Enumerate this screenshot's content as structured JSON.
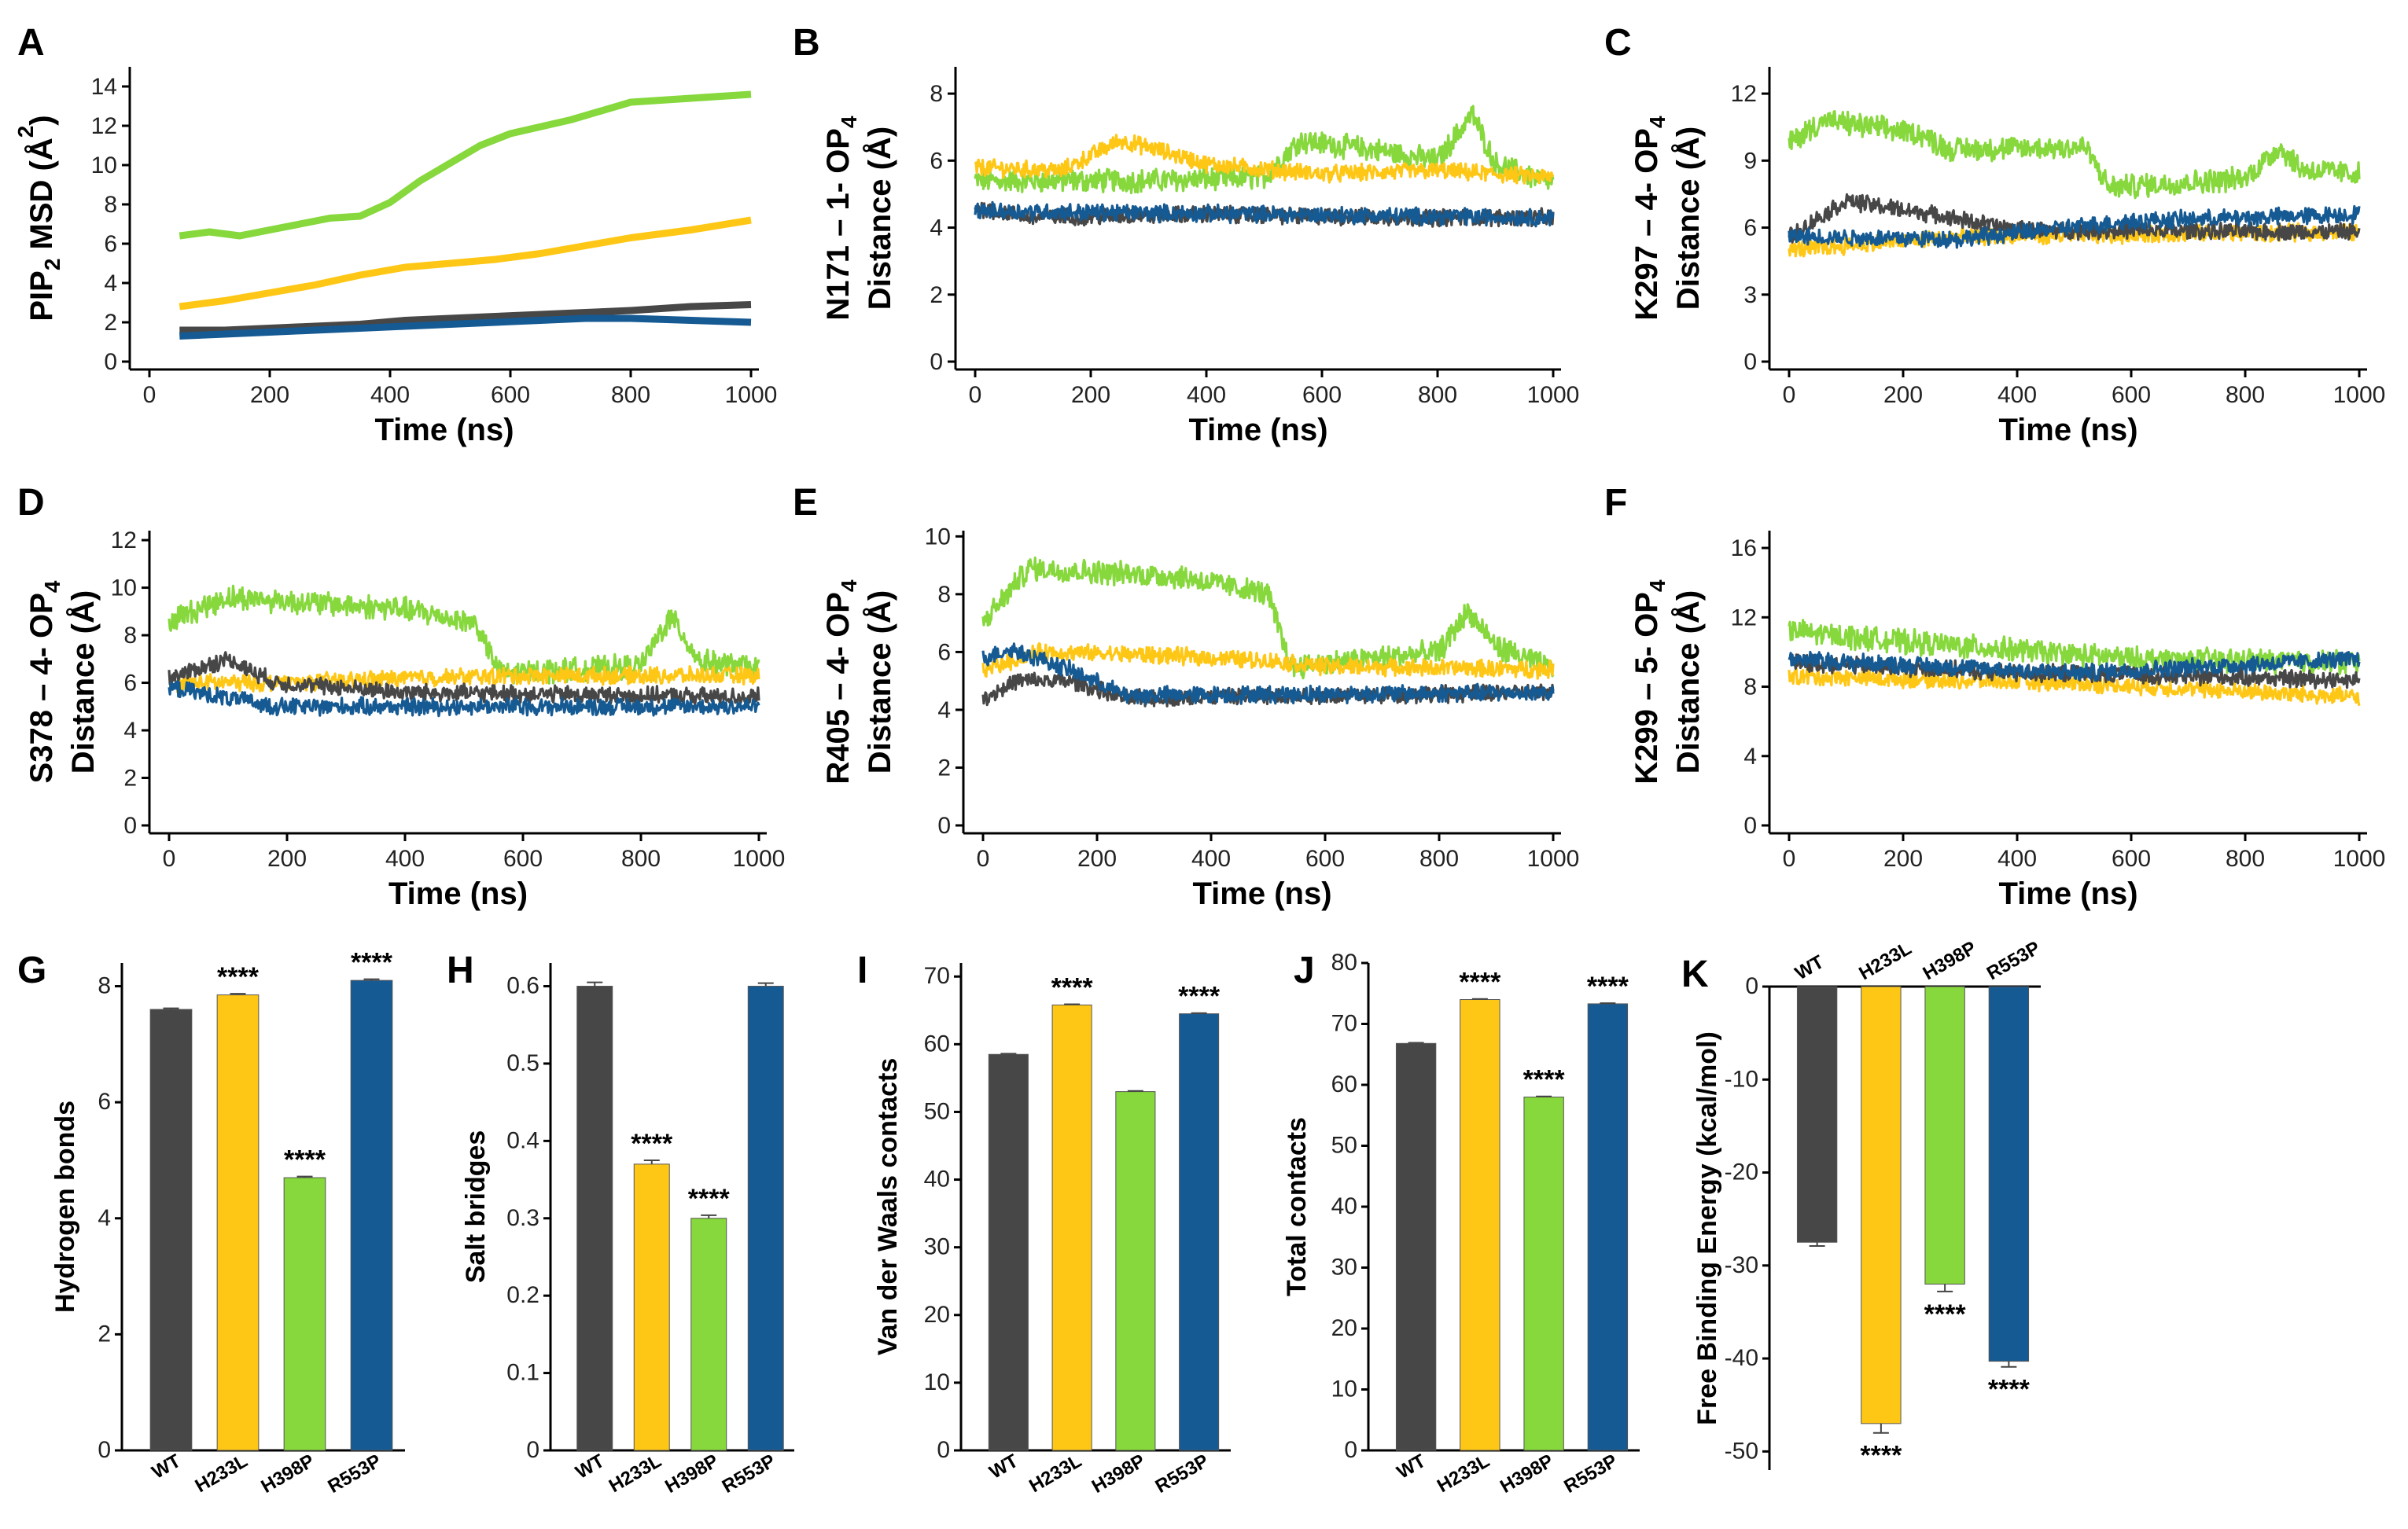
{
  "colors": {
    "WT": "#474747",
    "H233L": "#FFC715",
    "H398P": "#86D83C",
    "R553P": "#165A93"
  },
  "xlabel": "Time (ns)",
  "xticks": [
    0,
    200,
    400,
    600,
    800,
    1000
  ],
  "line_panels": [
    {
      "label": "A",
      "ylabel_main": "PIP",
      "ylabel_sub": "2",
      "ylabel_rest": " MSD (Å",
      "ylabel_sup": "2",
      "ylabel_end": ")",
      "ylabel2": "",
      "ylim": [
        0,
        15
      ],
      "yticks": [
        0,
        2,
        4,
        6,
        8,
        10,
        12,
        14
      ],
      "noisy": false,
      "series": {
        "H398P": [
          6.4,
          6.6,
          6.4,
          6.7,
          7.0,
          7.3,
          7.4,
          8.1,
          9.2,
          10.1,
          11.0,
          11.6,
          12.3,
          13.2,
          13.6
        ],
        "H233L": [
          2.8,
          3.1,
          3.5,
          3.9,
          4.4,
          4.8,
          5.0,
          5.2,
          5.5,
          5.9,
          6.3,
          6.7,
          7.2
        ],
        "WT": [
          1.6,
          1.6,
          1.7,
          1.8,
          1.9,
          2.1,
          2.2,
          2.3,
          2.4,
          2.5,
          2.6,
          2.8,
          2.9
        ],
        "R553P": [
          1.3,
          1.4,
          1.5,
          1.6,
          1.7,
          1.8,
          1.9,
          2.0,
          2.1,
          2.2,
          2.2,
          2.1,
          2.0
        ]
      }
    },
    {
      "label": "B",
      "ylabel_main": "N171 – 1- OP",
      "ylabel_sub": "4",
      "ylabel_rest": "",
      "ylabel_sup": "",
      "ylabel_end": "",
      "ylabel2": "Distance (Å)",
      "ylim": [
        0,
        8.8
      ],
      "yticks": [
        0,
        2,
        4,
        6,
        8
      ],
      "noisy": true,
      "series": {
        "WT": [
          [
            0,
            4.6
          ],
          [
            100,
            4.3
          ],
          [
            400,
            4.4
          ],
          [
            700,
            4.3
          ],
          [
            1000,
            4.3
          ]
        ],
        "H233L": [
          [
            0,
            5.8
          ],
          [
            150,
            5.7
          ],
          [
            250,
            6.6
          ],
          [
            300,
            6.4
          ],
          [
            400,
            5.9
          ],
          [
            600,
            5.6
          ],
          [
            800,
            5.7
          ],
          [
            1000,
            5.5
          ]
        ],
        "H398P": [
          [
            0,
            5.4
          ],
          [
            300,
            5.4
          ],
          [
            500,
            5.5
          ],
          [
            560,
            6.6
          ],
          [
            700,
            6.3
          ],
          [
            800,
            6.0
          ],
          [
            860,
            7.4
          ],
          [
            900,
            5.9
          ],
          [
            1000,
            5.3
          ]
        ],
        "R553P": [
          [
            0,
            4.5
          ],
          [
            500,
            4.4
          ],
          [
            1000,
            4.3
          ]
        ]
      }
    },
    {
      "label": "C",
      "ylabel_main": "K297 – 4- OP",
      "ylabel_sub": "4",
      "ylabel_rest": "",
      "ylabel_sup": "",
      "ylabel_end": "",
      "ylabel2": "Distance (Å)",
      "ylim": [
        0,
        13.2
      ],
      "yticks": [
        0,
        3,
        6,
        9,
        12
      ],
      "noisy": true,
      "series": {
        "WT": [
          [
            0,
            5.6
          ],
          [
            100,
            7.2
          ],
          [
            250,
            6.6
          ],
          [
            400,
            5.9
          ],
          [
            1000,
            5.8
          ]
        ],
        "H233L": [
          [
            0,
            5.0
          ],
          [
            300,
            5.6
          ],
          [
            1000,
            5.8
          ]
        ],
        "H398P": [
          [
            0,
            9.8
          ],
          [
            60,
            10.8
          ],
          [
            230,
            10.2
          ],
          [
            280,
            9.5
          ],
          [
            520,
            9.6
          ],
          [
            560,
            7.8
          ],
          [
            800,
            8.2
          ],
          [
            860,
            9.6
          ],
          [
            900,
            8.6
          ],
          [
            1000,
            8.4
          ]
        ],
        "R553P": [
          [
            0,
            5.6
          ],
          [
            300,
            5.5
          ],
          [
            600,
            6.3
          ],
          [
            1000,
            6.6
          ]
        ]
      }
    },
    {
      "label": "D",
      "ylabel_main": "S378 – 4- OP",
      "ylabel_sub": "4",
      "ylabel_rest": "",
      "ylabel_sup": "",
      "ylabel_end": "",
      "ylabel2": "Distance (Å)",
      "ylim": [
        0,
        12.4
      ],
      "yticks": [
        0,
        2,
        4,
        6,
        8,
        10,
        12
      ],
      "noisy": true,
      "series": {
        "WT": [
          [
            0,
            6.2
          ],
          [
            100,
            7.0
          ],
          [
            180,
            6.0
          ],
          [
            400,
            5.6
          ],
          [
            1000,
            5.4
          ]
        ],
        "H233L": [
          [
            0,
            6.0
          ],
          [
            200,
            6.0
          ],
          [
            400,
            6.2
          ],
          [
            600,
            6.3
          ],
          [
            1000,
            6.3
          ]
        ],
        "H398P": [
          [
            0,
            8.6
          ],
          [
            100,
            9.6
          ],
          [
            400,
            9.1
          ],
          [
            520,
            8.5
          ],
          [
            560,
            6.4
          ],
          [
            800,
            6.7
          ],
          [
            850,
            8.8
          ],
          [
            900,
            6.9
          ],
          [
            1000,
            6.6
          ]
        ],
        "R553P": [
          [
            0,
            5.8
          ],
          [
            180,
            5.0
          ],
          [
            1000,
            5.0
          ]
        ]
      }
    },
    {
      "label": "E",
      "ylabel_main": "R405 – 4- OP",
      "ylabel_sub": "4",
      "ylabel_rest": "",
      "ylabel_sup": "",
      "ylabel_end": "",
      "ylabel2": "Distance (Å)",
      "ylim": [
        0,
        10.2
      ],
      "yticks": [
        0,
        2,
        4,
        6,
        8,
        10
      ],
      "noisy": true,
      "series": {
        "WT": [
          [
            0,
            4.4
          ],
          [
            60,
            5.0
          ],
          [
            150,
            5.0
          ],
          [
            250,
            4.4
          ],
          [
            1000,
            4.6
          ]
        ],
        "H233L": [
          [
            0,
            5.4
          ],
          [
            100,
            6.0
          ],
          [
            300,
            5.9
          ],
          [
            500,
            5.7
          ],
          [
            600,
            5.5
          ],
          [
            1000,
            5.4
          ]
        ],
        "H398P": [
          [
            0,
            7.0
          ],
          [
            80,
            8.9
          ],
          [
            350,
            8.6
          ],
          [
            500,
            8.0
          ],
          [
            540,
            5.5
          ],
          [
            800,
            6.0
          ],
          [
            850,
            7.4
          ],
          [
            900,
            6.2
          ],
          [
            1000,
            5.4
          ]
        ],
        "R553P": [
          [
            0,
            5.8
          ],
          [
            50,
            6.1
          ],
          [
            150,
            5.4
          ],
          [
            250,
            4.5
          ],
          [
            1000,
            4.6
          ]
        ]
      }
    },
    {
      "label": "F",
      "ylabel_main": "K299 – 5- OP",
      "ylabel_sub": "4",
      "ylabel_rest": "",
      "ylabel_sup": "",
      "ylabel_end": "",
      "ylabel2": "Distance (Å)",
      "ylim": [
        0,
        17
      ],
      "yticks": [
        0,
        4,
        8,
        12,
        16
      ],
      "noisy": true,
      "series": {
        "WT": [
          [
            0,
            9.4
          ],
          [
            400,
            8.8
          ],
          [
            1000,
            8.4
          ]
        ],
        "H233L": [
          [
            0,
            8.6
          ],
          [
            500,
            8.2
          ],
          [
            1000,
            7.4
          ]
        ],
        "H398P": [
          [
            0,
            11.2
          ],
          [
            200,
            10.6
          ],
          [
            600,
            9.6
          ],
          [
            1000,
            9.4
          ]
        ],
        "R553P": [
          [
            0,
            9.6
          ],
          [
            500,
            8.8
          ],
          [
            1000,
            9.6
          ]
        ]
      }
    }
  ],
  "bar_categories": [
    "WT",
    "H233L",
    "H398P",
    "R553P"
  ],
  "bar_panels": [
    {
      "label": "G",
      "ylabel": "Hydrogen bonds",
      "ylim": [
        0,
        8.4
      ],
      "yticks": [
        "0",
        "2",
        "4",
        "6",
        "8"
      ],
      "values": [
        7.6,
        7.85,
        4.7,
        8.1
      ],
      "errors": [
        0.02,
        0.02,
        0.02,
        0.02
      ],
      "stars": [
        "",
        "****",
        "****",
        "****"
      ],
      "negative": false
    },
    {
      "label": "H",
      "ylabel": "Salt bridges",
      "ylim": [
        0,
        0.63
      ],
      "yticks": [
        "0",
        "0.1",
        "0.2",
        "0.3",
        "0.4",
        "0.5",
        "0.6"
      ],
      "values": [
        0.6,
        0.37,
        0.3,
        0.6
      ],
      "errors": [
        0.005,
        0.005,
        0.004,
        0.004
      ],
      "stars": [
        "",
        "****",
        "****",
        ""
      ],
      "negative": false
    },
    {
      "label": "I",
      "ylabel": "Van der Waals contacts",
      "ylim": [
        0,
        72
      ],
      "yticks": [
        "0",
        "10",
        "20",
        "30",
        "40",
        "50",
        "60",
        "70"
      ],
      "values": [
        58.5,
        65.8,
        53.0,
        64.5
      ],
      "errors": [
        0.1,
        0.1,
        0.1,
        0.1
      ],
      "stars": [
        "",
        "****",
        "",
        "****"
      ],
      "negative": false
    },
    {
      "label": "J",
      "ylabel": "Total contacts",
      "ylim": [
        0,
        80
      ],
      "yticks": [
        "0",
        "10",
        "20",
        "30",
        "40",
        "50",
        "60",
        "70",
        "80"
      ],
      "values": [
        66.8,
        74.0,
        58.0,
        73.3
      ],
      "errors": [
        0.1,
        0.1,
        0.1,
        0.1
      ],
      "stars": [
        "",
        "****",
        "****",
        "****"
      ],
      "negative": false
    },
    {
      "label": "K",
      "ylabel": "Free Binding Energy (kcal/mol)",
      "ylim": [
        -52,
        0
      ],
      "yticks": [
        "0",
        "-10",
        "-20",
        "-30",
        "-40",
        "-50"
      ],
      "values": [
        -27.5,
        -47.0,
        -32.0,
        -40.3
      ],
      "errors": [
        0.4,
        1.0,
        0.8,
        0.6
      ],
      "stars": [
        "",
        "****",
        "****",
        "****"
      ],
      "negative": true
    }
  ],
  "chart_data": [
    {
      "type": "line",
      "title": "A",
      "xlabel": "Time (ns)",
      "ylabel": "PIP2 MSD (Å2)",
      "xlim": [
        0,
        1000
      ],
      "ylim": [
        0,
        15
      ],
      "series": [
        {
          "name": "H398P",
          "x": [
            50,
            100,
            150,
            200,
            250,
            300,
            350,
            400,
            450,
            500,
            550,
            600,
            700,
            800,
            1000
          ],
          "values": [
            6.4,
            6.6,
            6.4,
            6.7,
            7.0,
            7.3,
            7.4,
            8.1,
            9.2,
            10.1,
            11.0,
            11.6,
            12.3,
            13.2,
            13.6
          ]
        },
        {
          "name": "H233L",
          "x": [
            50,
            125,
            200,
            275,
            350,
            425,
            500,
            575,
            650,
            725,
            800,
            900,
            1000
          ],
          "values": [
            2.8,
            3.1,
            3.5,
            3.9,
            4.4,
            4.8,
            5.0,
            5.2,
            5.5,
            5.9,
            6.3,
            6.7,
            7.2
          ]
        },
        {
          "name": "WT",
          "x": [
            50,
            125,
            200,
            275,
            350,
            425,
            500,
            575,
            650,
            725,
            800,
            900,
            1000
          ],
          "values": [
            1.6,
            1.6,
            1.7,
            1.8,
            1.9,
            2.1,
            2.2,
            2.3,
            2.4,
            2.5,
            2.6,
            2.8,
            2.9
          ]
        },
        {
          "name": "R553P",
          "x": [
            50,
            125,
            200,
            275,
            350,
            425,
            500,
            575,
            650,
            725,
            800,
            900,
            1000
          ],
          "values": [
            1.3,
            1.4,
            1.5,
            1.6,
            1.7,
            1.8,
            1.9,
            2.0,
            2.1,
            2.2,
            2.2,
            2.1,
            2.0
          ]
        }
      ]
    },
    {
      "type": "bar",
      "title": "G",
      "ylabel": "Hydrogen bonds",
      "categories": [
        "WT",
        "H233L",
        "H398P",
        "R553P"
      ],
      "values": [
        7.6,
        7.85,
        4.7,
        8.1
      ]
    },
    {
      "type": "bar",
      "title": "H",
      "ylabel": "Salt bridges",
      "categories": [
        "WT",
        "H233L",
        "H398P",
        "R553P"
      ],
      "values": [
        0.6,
        0.37,
        0.3,
        0.6
      ]
    },
    {
      "type": "bar",
      "title": "I",
      "ylabel": "Van der Waals contacts",
      "categories": [
        "WT",
        "H233L",
        "H398P",
        "R553P"
      ],
      "values": [
        58.5,
        65.8,
        53.0,
        64.5
      ]
    },
    {
      "type": "bar",
      "title": "J",
      "ylabel": "Total contacts",
      "categories": [
        "WT",
        "H233L",
        "H398P",
        "R553P"
      ],
      "values": [
        66.8,
        74.0,
        58.0,
        73.3
      ]
    },
    {
      "type": "bar",
      "title": "K",
      "ylabel": "Free Binding Energy (kcal/mol)",
      "categories": [
        "WT",
        "H233L",
        "H398P",
        "R553P"
      ],
      "values": [
        -27.5,
        -47.0,
        -32.0,
        -40.3
      ]
    }
  ]
}
